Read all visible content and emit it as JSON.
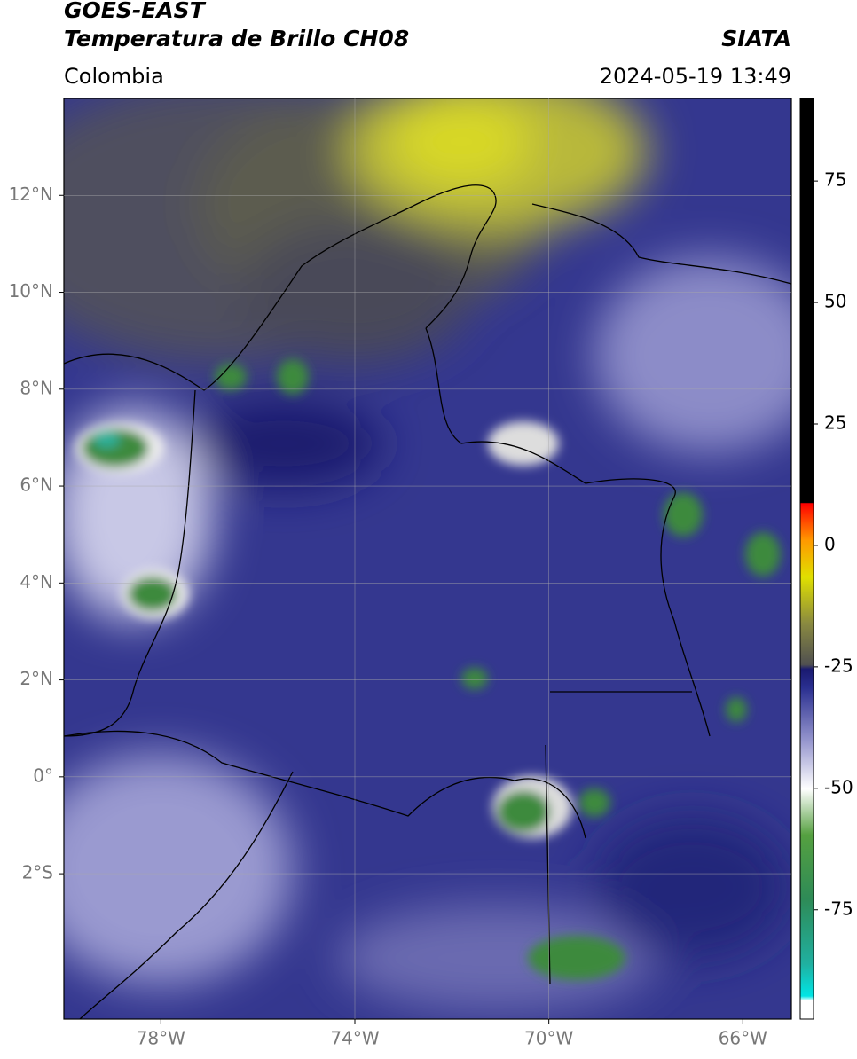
{
  "header": {
    "title": "GOES-EAST",
    "subtitle": "Temperatura de Brillo CH08",
    "source": "SIATA",
    "region": "Colombia",
    "datetime": "2024-05-19 13:49"
  },
  "map": {
    "xlim": [
      -80,
      -65
    ],
    "ylim": [
      -5,
      14
    ],
    "xticks": [
      {
        "value": -78,
        "label": "78°W"
      },
      {
        "value": -74,
        "label": "74°W"
      },
      {
        "value": -70,
        "label": "70°W"
      },
      {
        "value": -66,
        "label": "66°W"
      }
    ],
    "yticks": [
      {
        "value": 12,
        "label": "12°N"
      },
      {
        "value": 10,
        "label": "10°N"
      },
      {
        "value": 8,
        "label": "8°N"
      },
      {
        "value": 6,
        "label": "6°N"
      },
      {
        "value": 4,
        "label": "4°N"
      },
      {
        "value": 2,
        "label": "2°N"
      },
      {
        "value": 0,
        "label": "0°"
      },
      {
        "value": -2,
        "label": "2°S"
      }
    ],
    "grid": true
  },
  "colorbar": {
    "clim": [
      -97.5,
      92
    ],
    "ticks": [
      75,
      50,
      25,
      0,
      -25,
      -50,
      -75
    ]
  }
}
